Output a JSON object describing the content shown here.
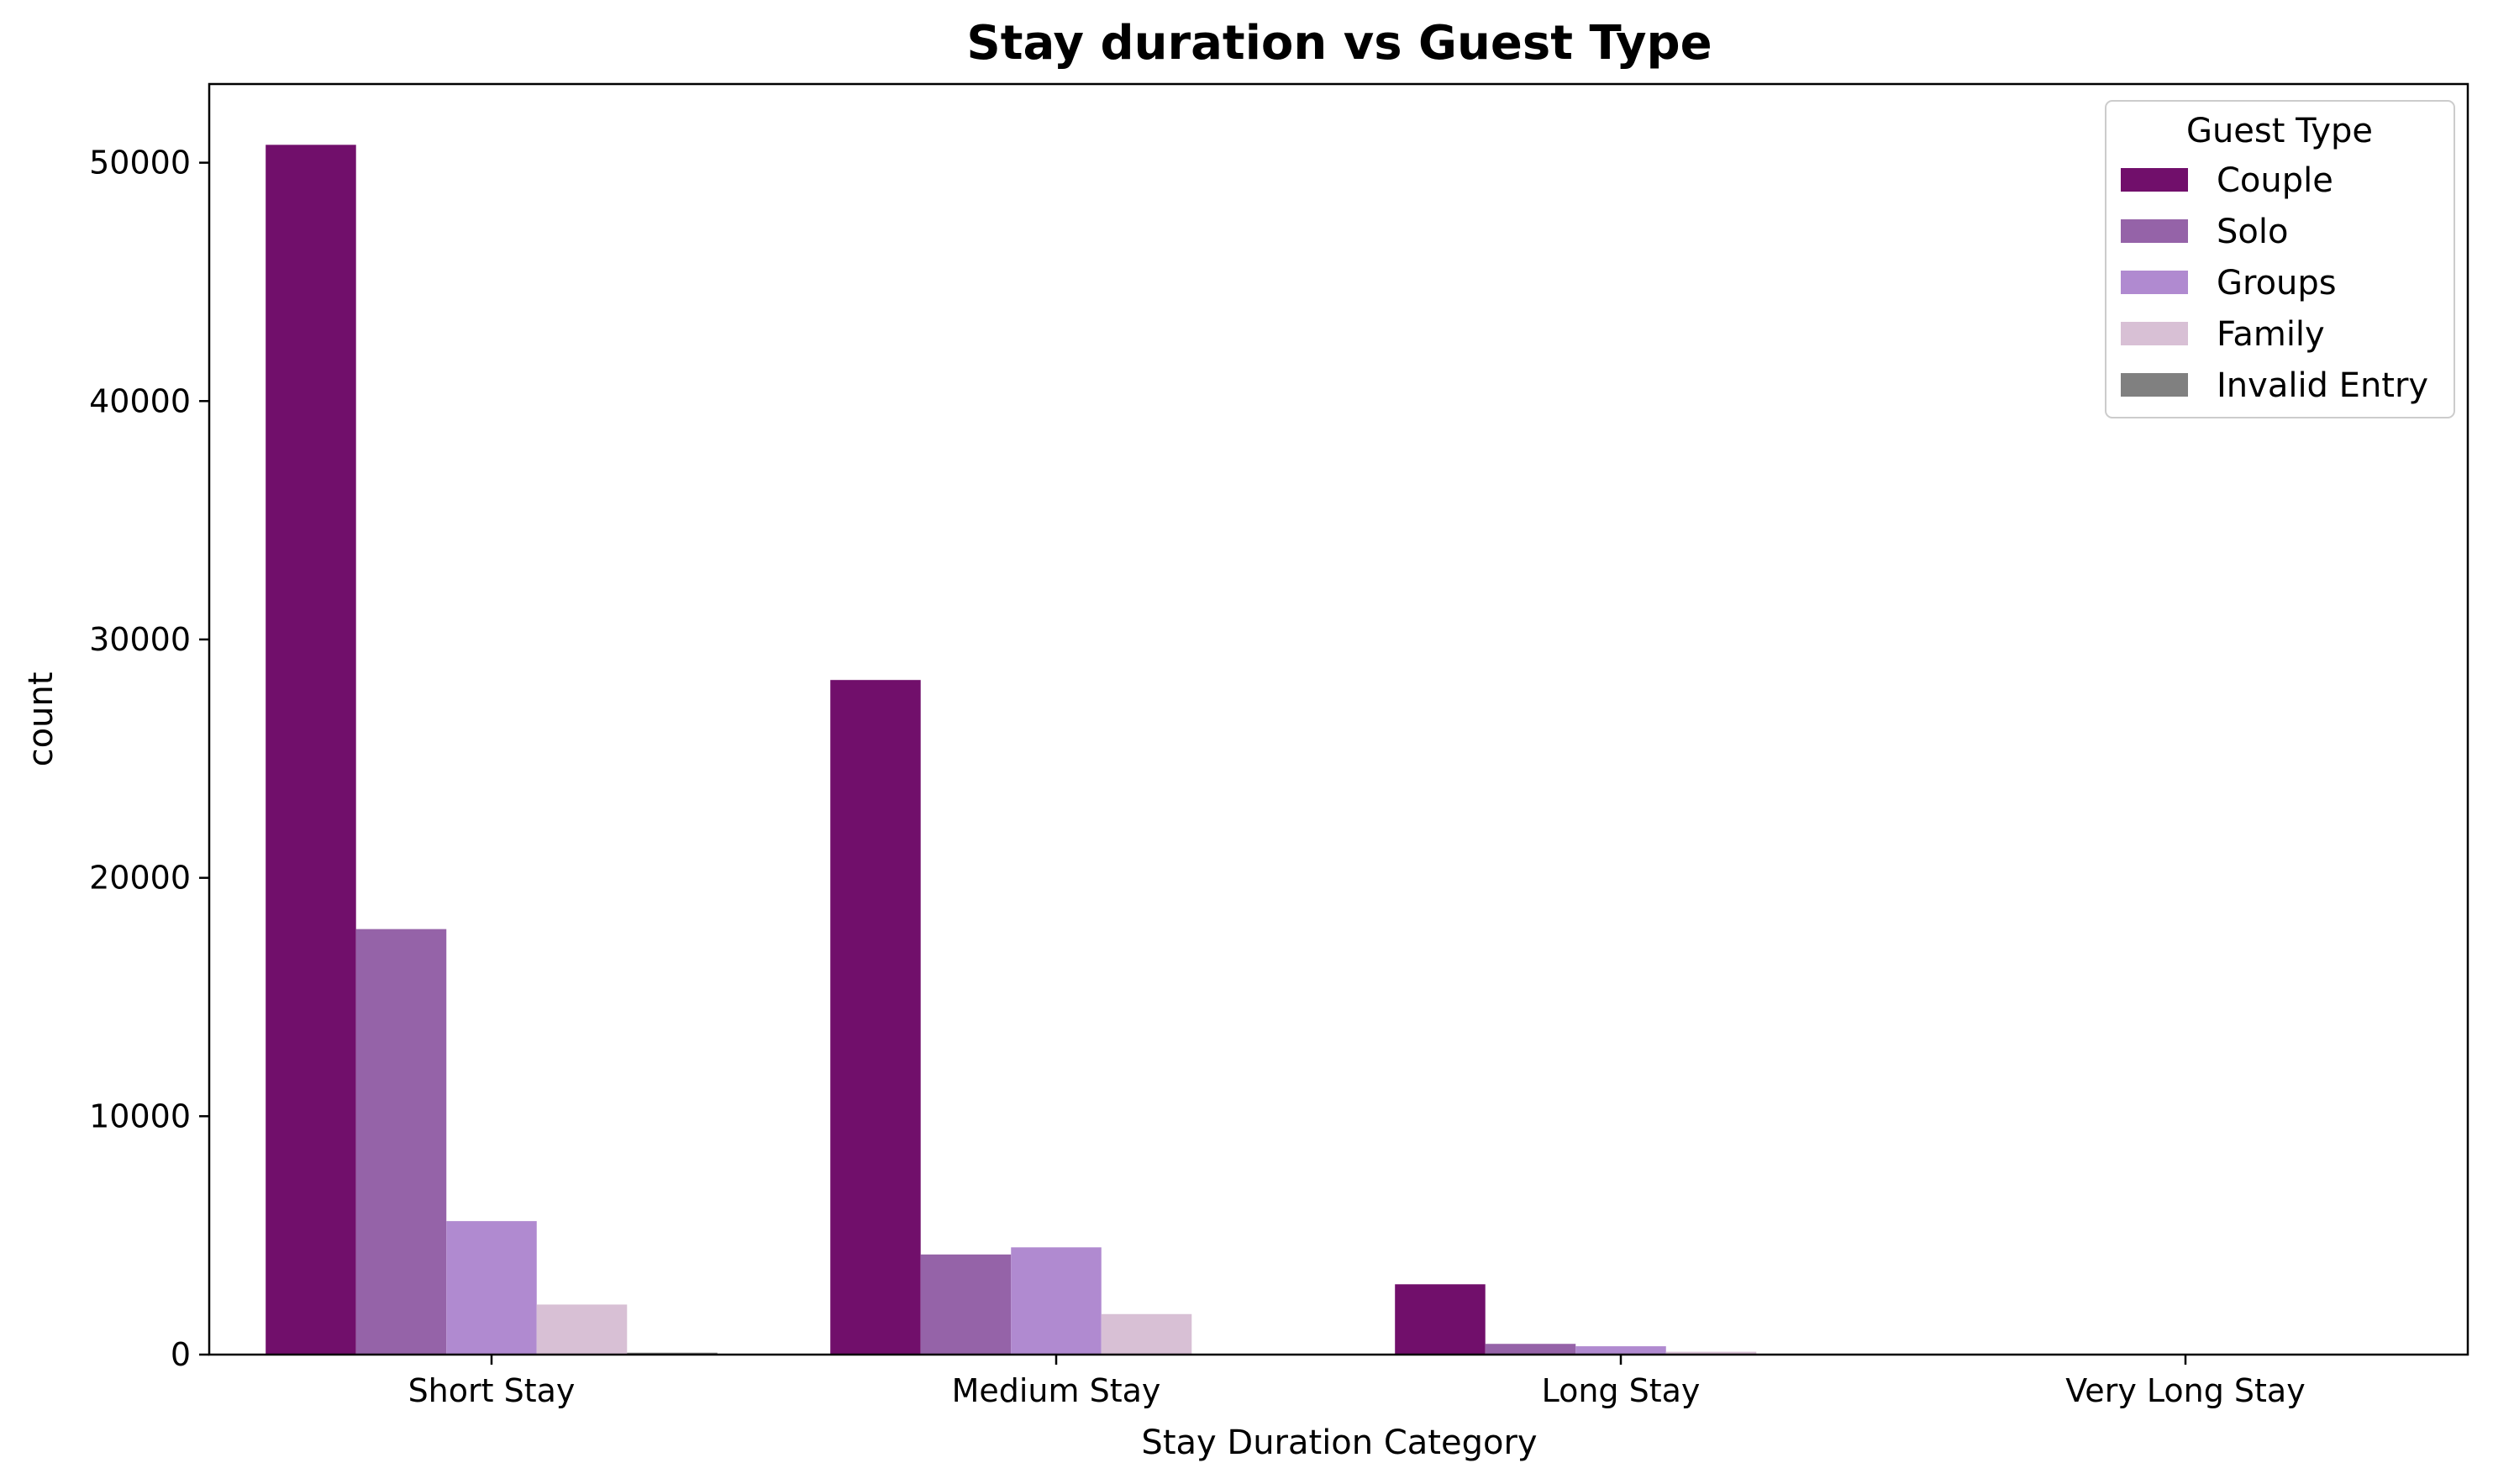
{
  "chart_data": {
    "type": "bar",
    "title": "Stay duration vs Guest Type",
    "xlabel": "Stay Duration Category",
    "ylabel": "count",
    "categories": [
      "Short Stay",
      "Medium Stay",
      "Long Stay",
      "Very Long Stay"
    ],
    "ylim": [
      0,
      53300
    ],
    "yticks": [
      0,
      10000,
      20000,
      30000,
      40000,
      50000
    ],
    "grid": false,
    "legend": {
      "title": "Guest Type",
      "placement": "top-right"
    },
    "series": [
      {
        "name": "Couple",
        "color": "#710f6b",
        "values": [
          50750,
          28300,
          2950,
          0
        ]
      },
      {
        "name": "Solo",
        "color": "#9563a8",
        "values": [
          17850,
          4200,
          450,
          0
        ]
      },
      {
        "name": "Groups",
        "color": "#b08ad0",
        "values": [
          5600,
          4500,
          350,
          0
        ]
      },
      {
        "name": "Family",
        "color": "#d8c0d5",
        "values": [
          2100,
          1700,
          120,
          0
        ]
      },
      {
        "name": "Invalid Entry",
        "color": "#808080",
        "values": [
          80,
          0,
          0,
          0
        ]
      }
    ]
  }
}
